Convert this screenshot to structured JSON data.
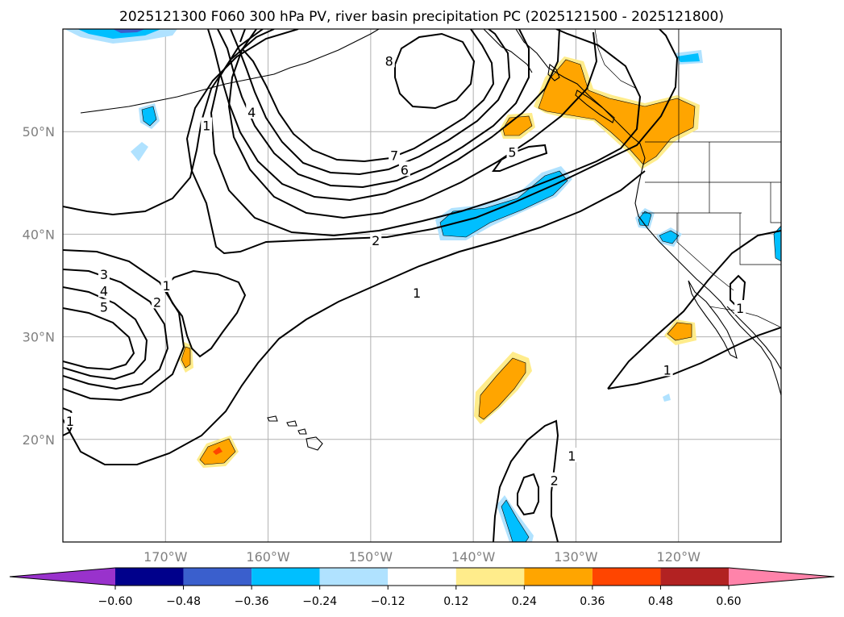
{
  "title": "2025121300 F060 300 hPa PV, river basin precipitation PC (2025121500 - 2025121800)",
  "map": {
    "lon_range": [
      180,
      110
    ],
    "lat_range": [
      10,
      60
    ],
    "lat_ticks": [
      {
        "value": 20,
        "label": "20°N"
      },
      {
        "value": 30,
        "label": "30°N"
      },
      {
        "value": 40,
        "label": "40°N"
      },
      {
        "value": 50,
        "label": "50°N"
      }
    ],
    "lon_ticks": [
      {
        "value": 170,
        "label": "170°W"
      },
      {
        "value": 160,
        "label": "160°W"
      },
      {
        "value": 150,
        "label": "150°W"
      },
      {
        "value": 140,
        "label": "140°W"
      },
      {
        "value": 130,
        "label": "130°W"
      },
      {
        "value": 120,
        "label": "120°W"
      }
    ],
    "pv_contour_labels": [
      {
        "text": "8",
        "lon": 148.2,
        "lat": 56.9
      },
      {
        "text": "7",
        "lon": 147.7,
        "lat": 47.7
      },
      {
        "text": "6",
        "lon": 146.7,
        "lat": 46.3
      },
      {
        "text": "5",
        "lon": 136.2,
        "lat": 48.0
      },
      {
        "text": "4",
        "lon": 161.6,
        "lat": 51.9
      },
      {
        "text": "1",
        "lon": 166.0,
        "lat": 50.6
      },
      {
        "text": "2",
        "lon": 149.5,
        "lat": 39.4
      },
      {
        "text": "1",
        "lon": 145.5,
        "lat": 34.3
      },
      {
        "text": "3",
        "lon": 176.0,
        "lat": 36.1
      },
      {
        "text": "4",
        "lon": 176.0,
        "lat": 34.5
      },
      {
        "text": "5",
        "lon": 176.0,
        "lat": 32.9
      },
      {
        "text": "2",
        "lon": 170.8,
        "lat": 33.4
      },
      {
        "text": "1",
        "lon": 169.9,
        "lat": 35.0
      },
      {
        "text": "1",
        "lon": 179.3,
        "lat": 21.8
      },
      {
        "text": "1",
        "lon": 130.4,
        "lat": 18.4
      },
      {
        "text": "2",
        "lon": 132.1,
        "lat": 16.0
      },
      {
        "text": "1",
        "lon": 121.1,
        "lat": 26.8
      },
      {
        "text": "1",
        "lon": 114.0,
        "lat": 32.8
      }
    ],
    "precip_anomalies": [
      {
        "sign": "positive",
        "region": "Pacific Northwest / British Columbia coast"
      },
      {
        "sign": "positive",
        "region": "Gulf of Alaska"
      },
      {
        "sign": "positive",
        "region": "Subtropical Pacific near 138°W"
      },
      {
        "sign": "positive",
        "region": "Northwest of Hawaii"
      },
      {
        "sign": "negative",
        "region": "North Pacific near 40°N"
      },
      {
        "sign": "negative",
        "region": "Central California"
      }
    ]
  },
  "colorbar": {
    "ticks": [
      "−0.60",
      "−0.48",
      "−0.36",
      "−0.24",
      "−0.12",
      "0.12",
      "0.24",
      "0.36",
      "0.48",
      "0.60"
    ],
    "levels": [
      -0.6,
      -0.48,
      -0.36,
      -0.24,
      -0.12,
      0.12,
      0.24,
      0.36,
      0.48,
      0.6
    ],
    "colors": [
      "#9932cc",
      "#00008b",
      "#3a5fcd",
      "#00bfff",
      "#b0e2ff",
      "#ffffff",
      "#ffec8b",
      "#ffa500",
      "#ff4500",
      "#b22222",
      "#ff83aa"
    ]
  }
}
